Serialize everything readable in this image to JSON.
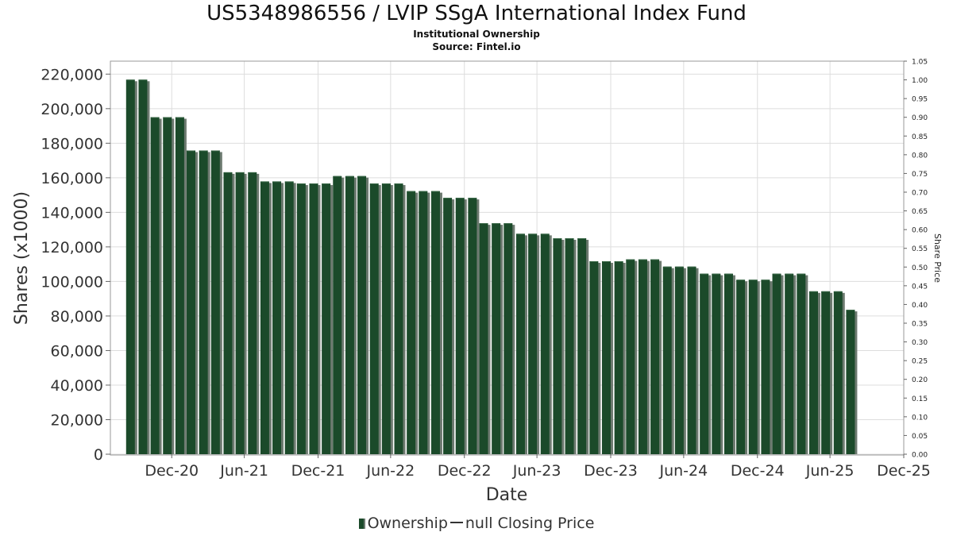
{
  "title": "US5348986556 / LVIP SSgA International Index Fund",
  "subtitle": "Institutional Ownership",
  "source": "Source: Fintel.io",
  "legend": {
    "ownership": "Ownership",
    "price": "null Closing Price"
  },
  "colors": {
    "bar": "#1b4a2a",
    "bar_shadow": "#6d7a70",
    "grid": "#dddddd",
    "axis": "#888888"
  },
  "chart_data": {
    "type": "bar",
    "xlabel": "Date",
    "ylabel": "Shares (x1000)",
    "y2label": "Share Price",
    "ylim": [
      0,
      227500
    ],
    "y2lim": [
      0,
      1.05
    ],
    "yticks": [
      0,
      20000,
      40000,
      60000,
      80000,
      100000,
      120000,
      140000,
      160000,
      180000,
      200000,
      220000
    ],
    "yticklabels": [
      "0",
      "20,000",
      "40,000",
      "60,000",
      "80,000",
      "100,000",
      "120,000",
      "140,000",
      "160,000",
      "180,000",
      "200,000",
      "220,000"
    ],
    "y2ticks": [
      "0.00",
      "0.05",
      "0.10",
      "0.15",
      "0.20",
      "0.25",
      "0.30",
      "0.35",
      "0.40",
      "0.45",
      "0.50",
      "0.55",
      "0.60",
      "0.65",
      "0.70",
      "0.75",
      "0.80",
      "0.85",
      "0.90",
      "0.95",
      "1.00",
      "1.05"
    ],
    "xlim": [
      "2020-07-31",
      "2025-12-31"
    ],
    "xticks": [
      {
        "date": "2020-12-31",
        "label": "Dec-20"
      },
      {
        "date": "2021-06-30",
        "label": "Jun-21"
      },
      {
        "date": "2021-12-31",
        "label": "Dec-21"
      },
      {
        "date": "2022-06-30",
        "label": "Jun-22"
      },
      {
        "date": "2022-12-31",
        "label": "Dec-22"
      },
      {
        "date": "2023-06-30",
        "label": "Jun-23"
      },
      {
        "date": "2023-12-31",
        "label": "Dec-23"
      },
      {
        "date": "2024-06-30",
        "label": "Jun-24"
      },
      {
        "date": "2024-12-31",
        "label": "Dec-24"
      },
      {
        "date": "2025-06-30",
        "label": "Jun-25"
      },
      {
        "date": "2025-12-31",
        "label": "Dec-25"
      }
    ],
    "grid": true,
    "legend_position": "bottom",
    "series": [
      {
        "name": "Ownership",
        "points": [
          {
            "date": "2020-09-30",
            "value": 216800
          },
          {
            "date": "2020-10-31",
            "value": 216800
          },
          {
            "date": "2020-11-30",
            "value": 195100
          },
          {
            "date": "2020-12-31",
            "value": 195100
          },
          {
            "date": "2021-01-31",
            "value": 195100
          },
          {
            "date": "2021-02-28",
            "value": 175800
          },
          {
            "date": "2021-03-31",
            "value": 175800
          },
          {
            "date": "2021-04-30",
            "value": 175800
          },
          {
            "date": "2021-05-31",
            "value": 163200
          },
          {
            "date": "2021-06-30",
            "value": 163200
          },
          {
            "date": "2021-07-31",
            "value": 163200
          },
          {
            "date": "2021-08-31",
            "value": 157900
          },
          {
            "date": "2021-09-30",
            "value": 157900
          },
          {
            "date": "2021-10-31",
            "value": 157900
          },
          {
            "date": "2021-11-30",
            "value": 156700
          },
          {
            "date": "2021-12-31",
            "value": 156700
          },
          {
            "date": "2022-01-31",
            "value": 156700
          },
          {
            "date": "2022-02-28",
            "value": 161000
          },
          {
            "date": "2022-03-31",
            "value": 161000
          },
          {
            "date": "2022-04-30",
            "value": 161000
          },
          {
            "date": "2022-05-31",
            "value": 156700
          },
          {
            "date": "2022-06-30",
            "value": 156700
          },
          {
            "date": "2022-07-31",
            "value": 156700
          },
          {
            "date": "2022-08-31",
            "value": 152300
          },
          {
            "date": "2022-09-30",
            "value": 152300
          },
          {
            "date": "2022-10-31",
            "value": 152300
          },
          {
            "date": "2022-11-30",
            "value": 148400
          },
          {
            "date": "2022-12-31",
            "value": 148400
          },
          {
            "date": "2023-01-31",
            "value": 148400
          },
          {
            "date": "2023-02-28",
            "value": 133700
          },
          {
            "date": "2023-03-31",
            "value": 133700
          },
          {
            "date": "2023-04-30",
            "value": 133700
          },
          {
            "date": "2023-05-31",
            "value": 127600
          },
          {
            "date": "2023-06-30",
            "value": 127600
          },
          {
            "date": "2023-07-31",
            "value": 127600
          },
          {
            "date": "2023-08-31",
            "value": 125000
          },
          {
            "date": "2023-09-30",
            "value": 125000
          },
          {
            "date": "2023-10-31",
            "value": 125000
          },
          {
            "date": "2023-11-30",
            "value": 111700
          },
          {
            "date": "2023-12-31",
            "value": 111700
          },
          {
            "date": "2024-01-31",
            "value": 111700
          },
          {
            "date": "2024-02-29",
            "value": 112800
          },
          {
            "date": "2024-03-31",
            "value": 112800
          },
          {
            "date": "2024-04-30",
            "value": 112800
          },
          {
            "date": "2024-05-31",
            "value": 108600
          },
          {
            "date": "2024-06-30",
            "value": 108600
          },
          {
            "date": "2024-07-31",
            "value": 108600
          },
          {
            "date": "2024-08-31",
            "value": 104500
          },
          {
            "date": "2024-09-30",
            "value": 104500
          },
          {
            "date": "2024-10-31",
            "value": 104500
          },
          {
            "date": "2024-11-30",
            "value": 101000
          },
          {
            "date": "2024-12-31",
            "value": 101000
          },
          {
            "date": "2025-01-31",
            "value": 101000
          },
          {
            "date": "2025-02-28",
            "value": 104500
          },
          {
            "date": "2025-03-31",
            "value": 104500
          },
          {
            "date": "2025-04-30",
            "value": 104500
          },
          {
            "date": "2025-05-31",
            "value": 94300
          },
          {
            "date": "2025-06-30",
            "value": 94300
          },
          {
            "date": "2025-07-31",
            "value": 94300
          },
          {
            "date": "2025-08-31",
            "value": 83600
          }
        ]
      }
    ]
  }
}
